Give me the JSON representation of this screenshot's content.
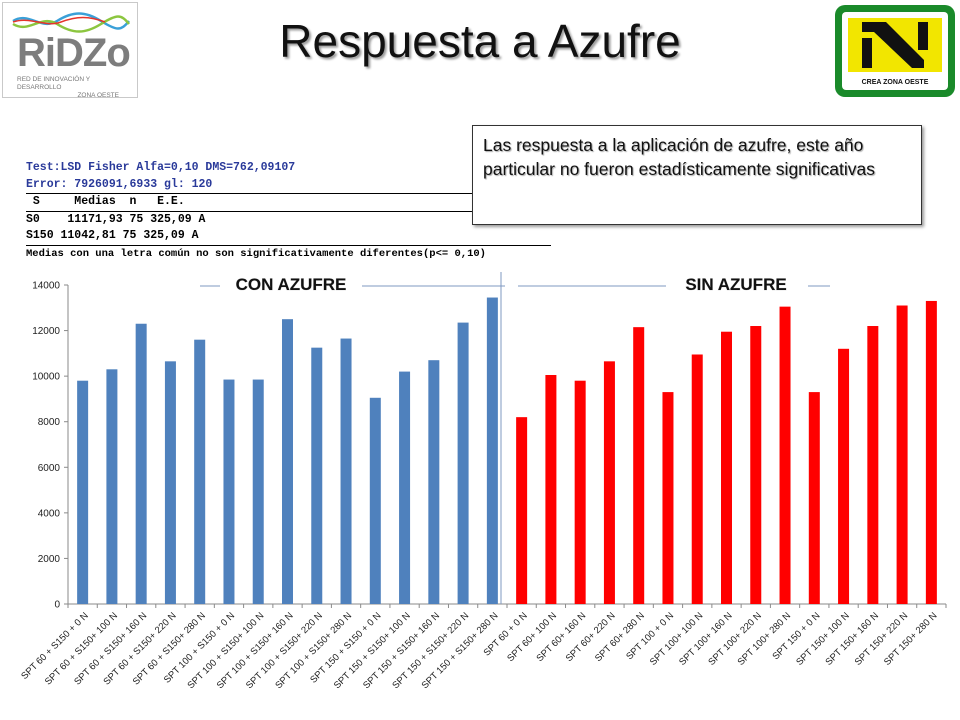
{
  "header": {
    "title": "Respuesta a Azufre",
    "logo_left": {
      "brand": "RiDZo",
      "subtitle_line1": "RED DE INNOVACIÓN Y DESARROLLO",
      "subtitle_line2": "ZONA OESTE"
    },
    "logo_right": {
      "tagline": "CREA  ZONA OESTE",
      "colors": {
        "frame": "#1a8a2a",
        "accent": "#f2e600",
        "mark": "#111111"
      }
    }
  },
  "stats": {
    "test_line": "Test:LSD Fisher Alfa=0,10 DMS=762,09107",
    "error_line": "Error: 7926091,6933 gl: 120",
    "header_line": " S     Medias  n   E.E.  ",
    "rows": [
      "S0    11171,93 75 325,09 A",
      "S150 11042,81 75 325,09 A"
    ],
    "note": "Medias con una letra común no son significativamente diferentes(p<= 0,10)"
  },
  "callout": {
    "text": "Las respuesta a la aplicación de azufre, este año particular no fueron estadísticamente significativas"
  },
  "chart_data": {
    "type": "bar",
    "ylim": [
      0,
      14000
    ],
    "yticks": [
      0,
      2000,
      4000,
      6000,
      8000,
      10000,
      12000,
      14000
    ],
    "grid": false,
    "sections": [
      {
        "label": "CON AZUFRE",
        "color": "#4f81bd"
      },
      {
        "label": "SIN AZUFRE",
        "color": "#ff0000"
      }
    ],
    "categories": [
      "SPT 60 + S150 + 0 N",
      "SPT 60 + S150+ 100 N",
      "SPT 60 + S150+ 160 N",
      "SPT 60 + S150+ 220 N",
      "SPT 60 + S150+ 280 N",
      "SPT 100 + S150 + 0 N",
      "SPT 100 + S150+ 100 N",
      "SPT 100 + S150+ 160 N",
      "SPT 100 + S150+ 220 N",
      "SPT 100 + S150+ 280 N",
      "SPT 150 + S150 + 0 N",
      "SPT 150 + S150+ 100 N",
      "SPT 150 + S150+ 160 N",
      "SPT 150 + S150+ 220 N",
      "SPT 150 + S150+ 280 N",
      "SPT 60 + 0 N",
      "SPT 60+ 100 N",
      "SPT 60+ 160 N",
      "SPT 60+ 220 N",
      "SPT 60+ 280 N",
      "SPT 100 + 0 N",
      "SPT 100+ 100 N",
      "SPT 100+ 160 N",
      "SPT 100+ 220 N",
      "SPT 100+ 280 N",
      "SPT 150 + 0 N",
      "SPT 150+ 100 N",
      "SPT 150+ 160 N",
      "SPT 150+ 220 N",
      "SPT 150+ 280 N"
    ],
    "values": [
      9800,
      10300,
      12300,
      10650,
      11600,
      9850,
      9850,
      12500,
      11250,
      11650,
      9050,
      10200,
      10700,
      12350,
      13450,
      8200,
      10050,
      9800,
      10650,
      12150,
      9300,
      10950,
      11950,
      12200,
      13050,
      9300,
      11200,
      12200,
      13100,
      13300
    ],
    "section_of": [
      0,
      0,
      0,
      0,
      0,
      0,
      0,
      0,
      0,
      0,
      0,
      0,
      0,
      0,
      0,
      1,
      1,
      1,
      1,
      1,
      1,
      1,
      1,
      1,
      1,
      1,
      1,
      1,
      1,
      1
    ]
  }
}
